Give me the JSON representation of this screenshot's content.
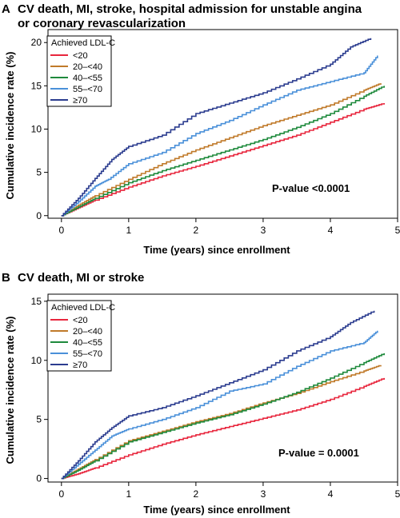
{
  "chart_data": [
    {
      "type": "line",
      "panel_letter": "A",
      "title_lines": [
        "CV death, MI, stroke, hospital admission for unstable angina",
        "or coronary revascularization"
      ],
      "xlabel": "Time (years) since enrollment",
      "ylabel": "Cumulative incidence rate (%)",
      "xlim": [
        -0.2,
        5
      ],
      "ylim": [
        -0.3,
        21.5
      ],
      "xticks": [
        0,
        1,
        2,
        3,
        4,
        5
      ],
      "yticks": [
        0,
        5,
        10,
        15,
        20
      ],
      "legend_title": "Achieved LDL-C",
      "legend_position": "top-left",
      "annotation": "P-value <0.0001",
      "series": [
        {
          "name": "<20",
          "color": "#e8263d",
          "x": [
            0,
            0.25,
            0.5,
            1.0,
            1.5,
            2.0,
            2.5,
            3.0,
            3.5,
            4.0,
            4.5,
            4.8
          ],
          "y": [
            0,
            0.9,
            1.8,
            3.3,
            4.6,
            5.7,
            6.9,
            8.1,
            9.3,
            10.8,
            12.3,
            13.0
          ]
        },
        {
          "name": "20–<40",
          "color": "#c07a2a",
          "x": [
            0,
            0.25,
            0.5,
            1.0,
            1.5,
            2.0,
            2.5,
            3.0,
            3.5,
            4.0,
            4.5,
            4.75
          ],
          "y": [
            0,
            1.2,
            2.3,
            4.2,
            6.0,
            7.6,
            9.0,
            10.4,
            11.6,
            12.8,
            14.5,
            15.3
          ]
        },
        {
          "name": "40–<55",
          "color": "#1e8a3c",
          "x": [
            0,
            0.25,
            0.5,
            1.0,
            1.5,
            2.0,
            2.5,
            3.0,
            3.5,
            4.0,
            4.5,
            4.8
          ],
          "y": [
            0,
            1.0,
            2.0,
            3.8,
            5.2,
            6.4,
            7.6,
            8.8,
            10.2,
            11.8,
            13.8,
            15.0
          ]
        },
        {
          "name": "55–<70",
          "color": "#4a90d9",
          "x": [
            0,
            0.25,
            0.5,
            0.7,
            1.0,
            1.5,
            2.0,
            2.5,
            3.0,
            3.5,
            4.0,
            4.5,
            4.7
          ],
          "y": [
            0,
            1.6,
            3.4,
            4.2,
            6.0,
            7.3,
            9.5,
            11.0,
            12.8,
            14.5,
            15.5,
            16.5,
            18.5
          ]
        },
        {
          "name": "≥70",
          "color": "#2b3c8f",
          "x": [
            0,
            0.25,
            0.5,
            0.75,
            1.0,
            1.5,
            2.0,
            2.5,
            3.0,
            3.5,
            4.0,
            4.3,
            4.6
          ],
          "y": [
            0,
            2.0,
            4.3,
            6.5,
            8.0,
            9.3,
            11.8,
            13.0,
            14.2,
            15.8,
            17.5,
            19.5,
            20.5
          ]
        }
      ]
    },
    {
      "type": "line",
      "panel_letter": "B",
      "title_lines": [
        "CV death, MI or stroke"
      ],
      "xlabel": "Time (years) since enrollment",
      "ylabel": "Cumulative incidence rate (%)",
      "xlim": [
        -0.2,
        5
      ],
      "ylim": [
        -0.3,
        15.6
      ],
      "xticks": [
        0,
        1,
        2,
        3,
        4,
        5
      ],
      "yticks": [
        0,
        5,
        10,
        15
      ],
      "legend_title": "Achieved LDL-C",
      "legend_position": "top-left",
      "annotation": "P-value = 0.0001",
      "series": [
        {
          "name": "<20",
          "color": "#e8263d",
          "x": [
            0,
            0.25,
            0.5,
            1.0,
            1.5,
            2.0,
            2.5,
            3.0,
            3.5,
            4.0,
            4.5,
            4.8
          ],
          "y": [
            0,
            0.4,
            0.9,
            2.0,
            2.9,
            3.7,
            4.4,
            5.1,
            5.8,
            6.7,
            7.8,
            8.5
          ]
        },
        {
          "name": "20–<40",
          "color": "#c07a2a",
          "x": [
            0,
            0.25,
            0.5,
            1.0,
            1.5,
            2.0,
            2.5,
            3.0,
            3.5,
            4.0,
            4.5,
            4.75
          ],
          "y": [
            0,
            0.8,
            1.6,
            3.2,
            4.0,
            4.8,
            5.5,
            6.4,
            7.2,
            8.2,
            9.1,
            9.6
          ]
        },
        {
          "name": "40–<55",
          "color": "#1e8a3c",
          "x": [
            0,
            0.25,
            0.5,
            1.0,
            1.5,
            2.0,
            2.5,
            3.0,
            3.5,
            4.0,
            4.5,
            4.8
          ],
          "y": [
            0,
            0.7,
            1.5,
            3.1,
            3.9,
            4.7,
            5.4,
            6.3,
            7.3,
            8.5,
            9.8,
            10.6
          ]
        },
        {
          "name": "55–<70",
          "color": "#4a90d9",
          "x": [
            0,
            0.25,
            0.5,
            0.75,
            1.0,
            1.5,
            2.0,
            2.5,
            3.0,
            3.5,
            4.0,
            4.5,
            4.7
          ],
          "y": [
            0,
            1.2,
            2.4,
            3.6,
            4.2,
            5.0,
            6.0,
            7.4,
            8.0,
            9.5,
            10.8,
            11.5,
            12.5
          ]
        },
        {
          "name": "≥70",
          "color": "#2b3c8f",
          "x": [
            0,
            0.25,
            0.5,
            0.75,
            1.0,
            1.5,
            2.0,
            2.5,
            3.0,
            3.5,
            4.0,
            4.3,
            4.65
          ],
          "y": [
            0,
            1.5,
            3.1,
            4.3,
            5.3,
            6.0,
            7.0,
            8.1,
            9.2,
            10.8,
            12.0,
            13.2,
            14.2
          ]
        }
      ]
    }
  ]
}
